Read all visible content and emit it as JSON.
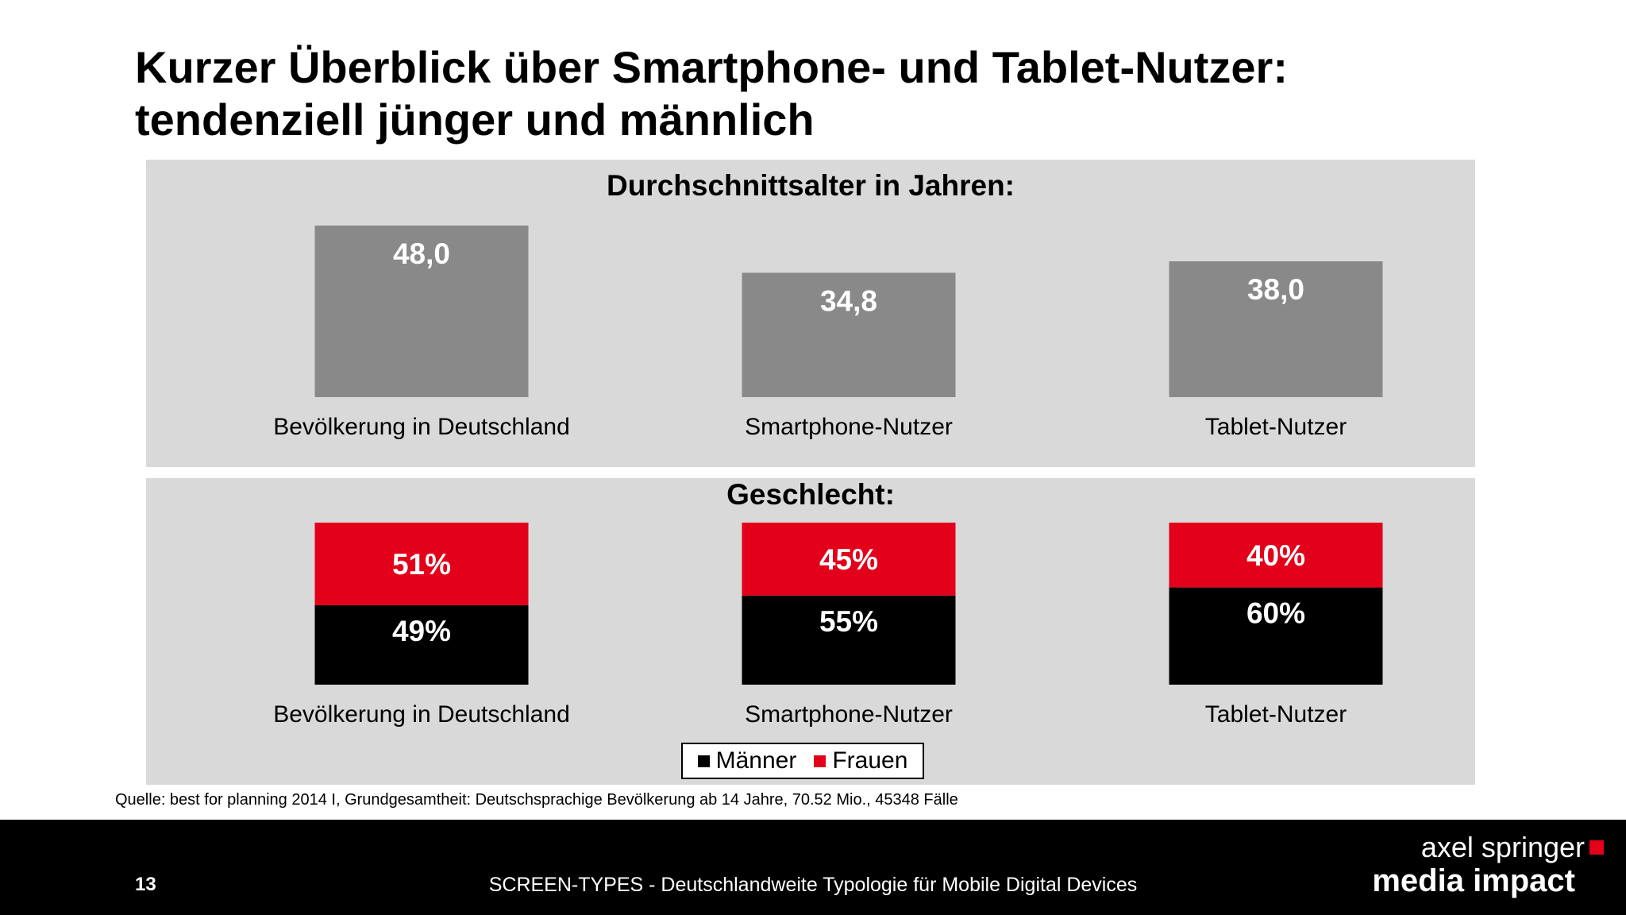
{
  "slide": {
    "title_line1": "Kurzer Überblick über Smartphone- und Tablet-Nutzer:",
    "title_line2": "tendenziell jünger und männlich",
    "source": "Quelle: best for planning 2014 I, Grundgesamtheit: Deutschsprachige Bevölkerung ab 14 Jahre, 70.52 Mio., 45348 Fälle",
    "page_number": "13",
    "footer_text": "SCREEN-TYPES - Deutschlandweite Typologie für Mobile Digital Devices",
    "logo_line1": "axel springer",
    "logo_line2": "media impact"
  },
  "colors": {
    "panel_bg": "#d9d9d9",
    "bar_gray": "#898989",
    "maenner": "#000000",
    "frauen": "#e2001a"
  },
  "chart_data": [
    {
      "type": "bar",
      "title": "Durchschnittsalter in Jahren:",
      "categories": [
        "Bevölkerung in Deutschland",
        "Smartphone-Nutzer",
        "Tablet-Nutzer"
      ],
      "values": [
        48.0,
        34.8,
        38.0
      ],
      "value_labels": [
        "48,0",
        "34,8",
        "38,0"
      ],
      "ylim": [
        0,
        48
      ]
    },
    {
      "type": "bar",
      "stacked": true,
      "title": "Geschlecht:",
      "categories": [
        "Bevölkerung in Deutschland",
        "Smartphone-Nutzer",
        "Tablet-Nutzer"
      ],
      "series": [
        {
          "name": "Männer",
          "values": [
            49,
            55,
            60
          ],
          "labels": [
            "49%",
            "55%",
            "60%"
          ]
        },
        {
          "name": "Frauen",
          "values": [
            51,
            45,
            40
          ],
          "labels": [
            "51%",
            "45%",
            "40%"
          ]
        }
      ],
      "ylim": [
        0,
        100
      ],
      "legend": "bottom-center"
    }
  ]
}
